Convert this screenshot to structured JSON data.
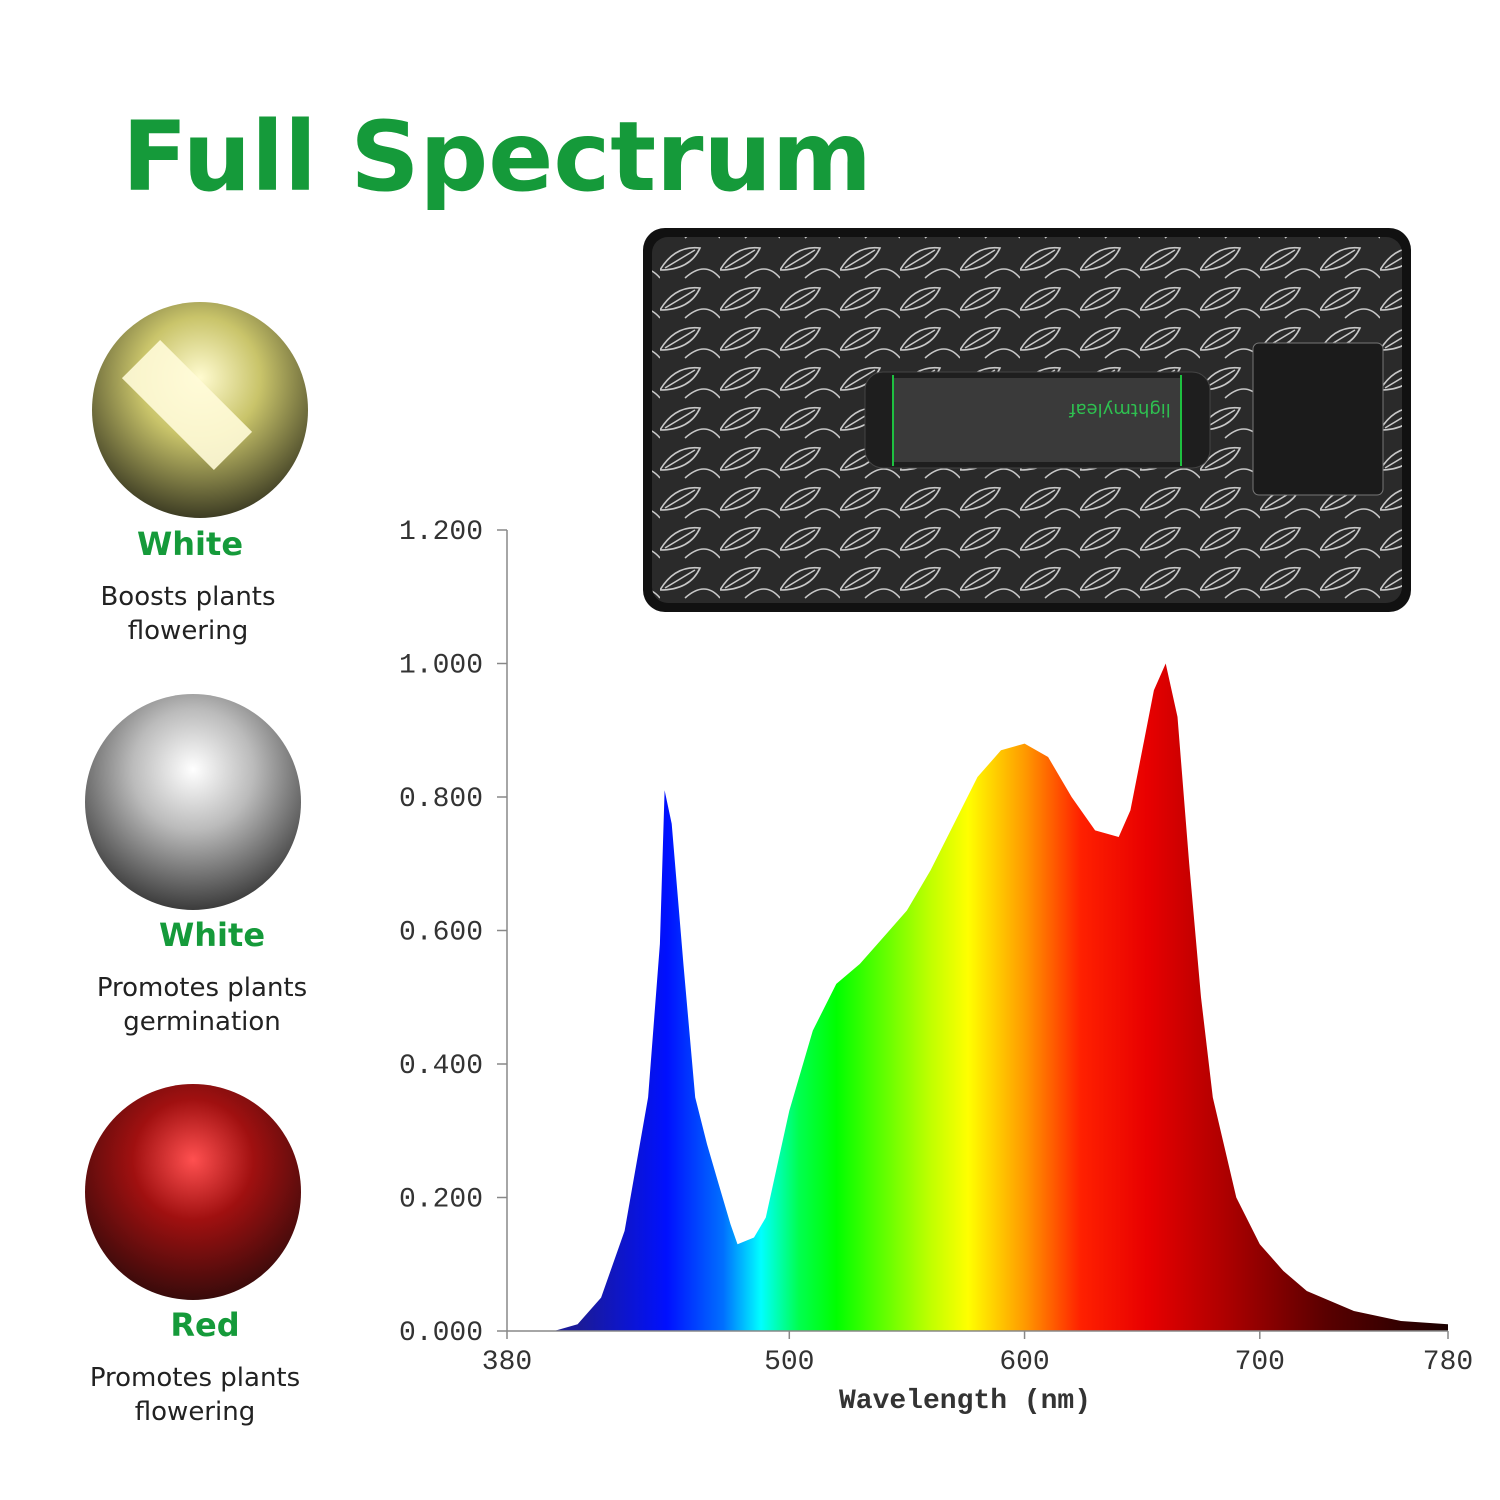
{
  "title": "Full Spectrum",
  "brand": "lightmyleaf",
  "leds": [
    {
      "name": "White",
      "description": [
        "Boosts plants",
        "flowering"
      ]
    },
    {
      "name": "White",
      "description": [
        "Promotes plants",
        "germination"
      ]
    },
    {
      "name": "Red",
      "description": [
        "Promotes plants",
        "flowering"
      ]
    }
  ],
  "chart_data": {
    "type": "area",
    "x_label": "Wavelength (nm)",
    "x": [
      380,
      400,
      410,
      420,
      430,
      440,
      445,
      447,
      450,
      455,
      460,
      465,
      470,
      475,
      478,
      485,
      490,
      500,
      510,
      520,
      530,
      540,
      550,
      560,
      570,
      580,
      590,
      600,
      610,
      620,
      630,
      640,
      645,
      650,
      655,
      660,
      665,
      670,
      675,
      680,
      690,
      700,
      710,
      720,
      740,
      760,
      780
    ],
    "values": [
      0,
      0,
      0.01,
      0.05,
      0.15,
      0.35,
      0.58,
      0.81,
      0.76,
      0.55,
      0.35,
      0.28,
      0.22,
      0.16,
      0.13,
      0.14,
      0.17,
      0.33,
      0.45,
      0.52,
      0.55,
      0.59,
      0.63,
      0.69,
      0.76,
      0.83,
      0.87,
      0.88,
      0.86,
      0.8,
      0.75,
      0.74,
      0.78,
      0.87,
      0.96,
      1.0,
      0.92,
      0.7,
      0.5,
      0.35,
      0.2,
      0.13,
      0.09,
      0.06,
      0.03,
      0.015,
      0.01
    ],
    "xlim": [
      380,
      780
    ],
    "xticks": [
      380,
      500,
      600,
      700,
      780
    ],
    "ylim": [
      0,
      1.2
    ],
    "yticks": [
      {
        "value": 0,
        "label": "0.000"
      },
      {
        "value": 0.2,
        "label": "0.200"
      },
      {
        "value": 0.4,
        "label": "0.400"
      },
      {
        "value": 0.6,
        "label": "0.600"
      },
      {
        "value": 0.8,
        "label": "0.800"
      },
      {
        "value": 1.0,
        "label": "1.000"
      },
      {
        "value": 1.2,
        "label": "1.200"
      }
    ]
  }
}
